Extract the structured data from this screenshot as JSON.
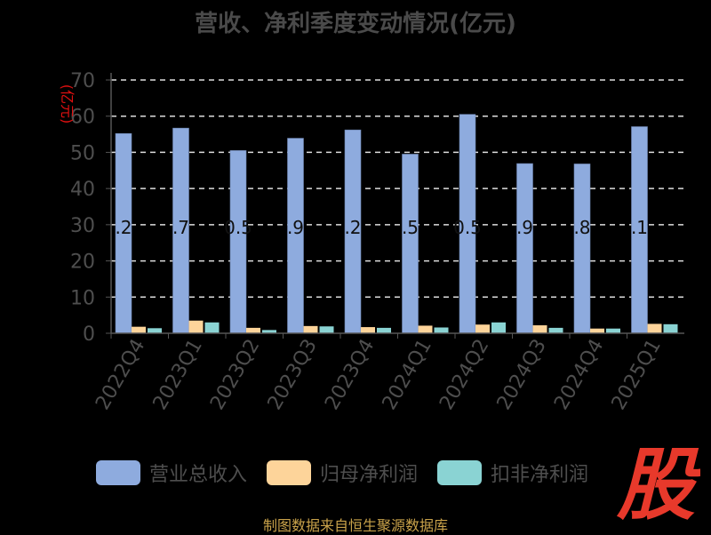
{
  "chart_data": {
    "type": "bar",
    "title": "营收、净利季度变动情况(亿元)",
    "ylabel": "(亿元)",
    "ylim": [
      0,
      70
    ],
    "yticks": [
      0,
      10,
      20,
      30,
      40,
      50,
      60,
      70
    ],
    "grid": true,
    "legend_position": "bottom",
    "categories": [
      "2022Q4",
      "2023Q1",
      "2023Q2",
      "2023Q3",
      "2023Q4",
      "2024Q1",
      "2024Q2",
      "2024Q3",
      "2024Q4",
      "2025Q1"
    ],
    "series": [
      {
        "name": "营业总收入",
        "color": "#8eabde",
        "values": [
          55.2,
          56.7,
          50.5,
          53.9,
          56.2,
          49.5,
          60.5,
          46.9,
          46.8,
          57.1
        ]
      },
      {
        "name": "归母净利润",
        "color": "#fdd49a",
        "values": [
          1.8,
          3.5,
          1.5,
          2.0,
          1.7,
          2.1,
          2.4,
          2.2,
          1.3,
          2.6
        ]
      },
      {
        "name": "扣非净利润",
        "color": "#8ad3d3",
        "values": [
          1.4,
          3.0,
          0.9,
          1.9,
          1.5,
          1.6,
          3.0,
          1.5,
          1.3,
          2.5
        ]
      }
    ],
    "data_labels": ".2|.7|0.5|.9|.2|.5|0.5|.9|.8|.1"
  },
  "source": "制图数据来自恒生聚源数据库",
  "brand_text": "股",
  "colors": {
    "axis_text": "#4e4e4e",
    "grid": "#dddddd",
    "ylabel": "#e01010",
    "data_label": "#111111",
    "brand": "#e8392b"
  }
}
